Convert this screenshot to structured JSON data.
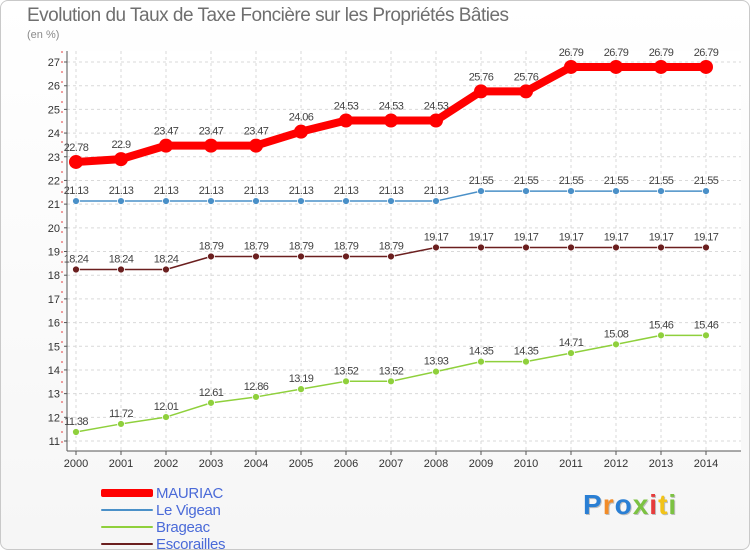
{
  "header": {
    "title": "Evolution du Taux de Taxe Foncière sur les Propriétés Bâties",
    "unit": "(en %)"
  },
  "chart_data": {
    "type": "line",
    "title": "Evolution du Taux de Taxe Foncière sur les Propriétés Bâties",
    "ylabel": "(en %)",
    "xlabel": "",
    "ylim": [
      11,
      27
    ],
    "yticks": [
      11,
      12,
      13,
      14,
      15,
      16,
      17,
      18,
      19,
      20,
      21,
      22,
      23,
      24,
      25,
      26,
      27
    ],
    "categories": [
      "2000",
      "2001",
      "2002",
      "2003",
      "2004",
      "2005",
      "2006",
      "2007",
      "2008",
      "2009",
      "2010",
      "2011",
      "2012",
      "2013",
      "2014"
    ],
    "grid": true,
    "legend_position": "bottom-left",
    "series": [
      {
        "name": "MAURIAC",
        "color": "#ff0000",
        "values": [
          22.78,
          22.9,
          23.47,
          23.47,
          23.47,
          24.06,
          24.53,
          24.53,
          24.53,
          25.76,
          25.76,
          26.79,
          26.79,
          26.79,
          26.79
        ],
        "labels": [
          "22.78",
          "22.9",
          "23.47",
          "23.47",
          "23.47",
          "24.06",
          "24.53",
          "24.53",
          "24.53",
          "25.76",
          "25.76",
          "26.79",
          "26.79",
          "26.79",
          "26.79"
        ]
      },
      {
        "name": "Le Vigean",
        "color": "#4a90c8",
        "values": [
          21.13,
          21.13,
          21.13,
          21.13,
          21.13,
          21.13,
          21.13,
          21.13,
          21.13,
          21.55,
          21.55,
          21.55,
          21.55,
          21.55,
          21.55
        ],
        "labels": [
          "21.13",
          "21.13",
          "21.13",
          "21.13",
          "21.13",
          "21.13",
          "21.13",
          "21.13",
          "21.13",
          "21.55",
          "21.55",
          "21.55",
          "21.55",
          "21.55",
          "21.55"
        ]
      },
      {
        "name": "Brageac",
        "color": "#8fd03c",
        "values": [
          11.38,
          11.72,
          12.01,
          12.61,
          12.86,
          13.19,
          13.52,
          13.52,
          13.93,
          14.35,
          14.35,
          14.71,
          15.08,
          15.46,
          15.46
        ],
        "labels": [
          "11.38",
          "11.72",
          "12.01",
          "12.61",
          "12.86",
          "13.19",
          "13.52",
          "13.52",
          "13.93",
          "14.35",
          "14.35",
          "14.71",
          "15.08",
          "15.46",
          "15.46"
        ]
      },
      {
        "name": "Escorailles",
        "color": "#6b1f1f",
        "values": [
          18.24,
          18.24,
          18.24,
          18.79,
          18.79,
          18.79,
          18.79,
          18.79,
          19.17,
          19.17,
          19.17,
          19.17,
          19.17,
          19.17,
          19.17
        ],
        "labels": [
          "18.24",
          "18.24",
          "18.24",
          "18.79",
          "18.79",
          "18.79",
          "18.79",
          "18.79",
          "19.17",
          "19.17",
          "19.17",
          "19.17",
          "19.17",
          "19.17",
          "19.17"
        ]
      }
    ]
  },
  "legend": {
    "items": [
      {
        "label": "MAURIAC",
        "color": "#ff0000"
      },
      {
        "label": "Le Vigean",
        "color": "#4a90c8"
      },
      {
        "label": "Brageac",
        "color": "#8fd03c"
      },
      {
        "label": "Escorailles",
        "color": "#6b1f1f"
      }
    ]
  },
  "logo": {
    "text": "Proxiti",
    "letter_colors": [
      "#2a7fd4",
      "#f28c28",
      "#2a7fd4",
      "#7cc242",
      "#e63c3c",
      "#f2c318",
      "#7cc242"
    ]
  }
}
